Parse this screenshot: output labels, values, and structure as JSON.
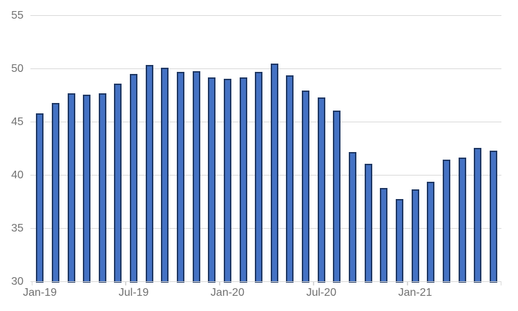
{
  "chart_data": {
    "type": "bar",
    "title": "",
    "categories": [
      "Jan-19",
      "Feb-19",
      "Mar-19",
      "Apr-19",
      "May-19",
      "Jun-19",
      "Jul-19",
      "Aug-19",
      "Sep-19",
      "Oct-19",
      "Nov-19",
      "Dec-19",
      "Jan-20",
      "Feb-20",
      "Mar-20",
      "Apr-20",
      "May-20",
      "Jun-20",
      "Jul-20",
      "Aug-20",
      "Sep-20",
      "Oct-20",
      "Nov-20",
      "Dec-20",
      "Jan-21",
      "Feb-21",
      "Mar-21",
      "Apr-21",
      "May-21",
      "Jun-21"
    ],
    "values": [
      45.8,
      46.8,
      47.7,
      47.6,
      47.7,
      48.6,
      49.5,
      50.4,
      50.1,
      49.7,
      49.8,
      49.2,
      49.1,
      49.2,
      49.7,
      50.5,
      49.4,
      48.0,
      47.3,
      46.1,
      42.2,
      41.1,
      38.8,
      37.8,
      38.7,
      39.4,
      41.5,
      41.7,
      42.6,
      42.3
    ],
    "xlabel": "",
    "ylabel": "",
    "x_axis": {
      "tick_label_indices": [
        0,
        6,
        12,
        18,
        24
      ],
      "tick_labels": [
        "Jan-19",
        "Jul-19",
        "Jan-20",
        "Jul-20",
        "Jan-21"
      ],
      "tick_interval_months": 6
    },
    "y_axis": {
      "min": 30,
      "max": 55,
      "ticks": [
        55,
        50,
        45,
        40,
        35,
        30
      ],
      "tick_labels": [
        "55",
        "50",
        "45",
        "40",
        "35",
        "30"
      ]
    },
    "grid": true,
    "legend": false,
    "colors": {
      "bar_fill": "#4472c4",
      "bar_border": "#1f3864",
      "gridline": "#d9d9d9",
      "axis_line": "#d9d9d9",
      "label_text": "#707070",
      "background": "#ffffff"
    }
  }
}
